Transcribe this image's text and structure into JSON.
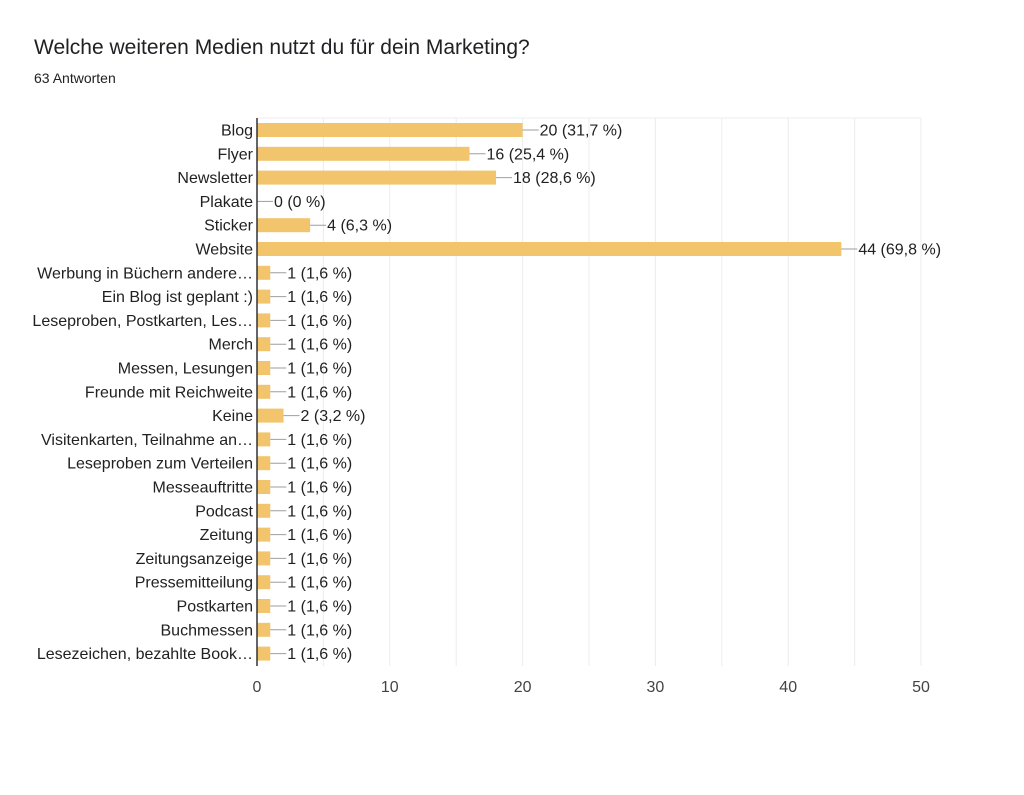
{
  "header": {
    "title": "Welche weiteren Medien nutzt du für dein Marketing?",
    "subtitle": "63 Antworten"
  },
  "chart_data": {
    "type": "bar",
    "orientation": "horizontal",
    "title": "Welche weiteren Medien nutzt du für dein Marketing?",
    "subtitle": "63 Antworten",
    "xlim": [
      0,
      50
    ],
    "xticks": [
      0,
      10,
      20,
      30,
      40,
      50
    ],
    "grid": true,
    "legend": "none",
    "bar_color": "#f2c46c",
    "categories": [
      "Blog",
      "Flyer",
      "Newsletter",
      "Plakate",
      "Sticker",
      "Website",
      "Werbung in Büchern andere…",
      "Ein Blog ist geplant :)",
      "Leseproben, Postkarten, Les…",
      "Merch",
      "Messen, Lesungen",
      "Freunde mit Reichweite",
      "Keine",
      "Visitenkarten, Teilnahme an…",
      "Leseproben zum Verteilen",
      "Messeauftritte",
      "Podcast",
      "Zeitung",
      "Zeitungsanzeige",
      "Pressemitteilung",
      "Postkarten",
      "Buchmessen",
      "Lesezeichen, bezahlte Book…"
    ],
    "values": [
      20,
      16,
      18,
      0,
      4,
      44,
      1,
      1,
      1,
      1,
      1,
      1,
      2,
      1,
      1,
      1,
      1,
      1,
      1,
      1,
      1,
      1,
      1
    ],
    "data_labels": [
      "20 (31,7 %)",
      "16 (25,4 %)",
      "18 (28,6 %)",
      "0 (0 %)",
      "4 (6,3 %)",
      "44 (69,8 %)",
      "1 (1,6 %)",
      "1 (1,6 %)",
      "1 (1,6 %)",
      "1 (1,6 %)",
      "1 (1,6 %)",
      "1 (1,6 %)",
      "2 (3,2 %)",
      "1 (1,6 %)",
      "1 (1,6 %)",
      "1 (1,6 %)",
      "1 (1,6 %)",
      "1 (1,6 %)",
      "1 (1,6 %)",
      "1 (1,6 %)",
      "1 (1,6 %)",
      "1 (1,6 %)",
      "1 (1,6 %)"
    ]
  }
}
